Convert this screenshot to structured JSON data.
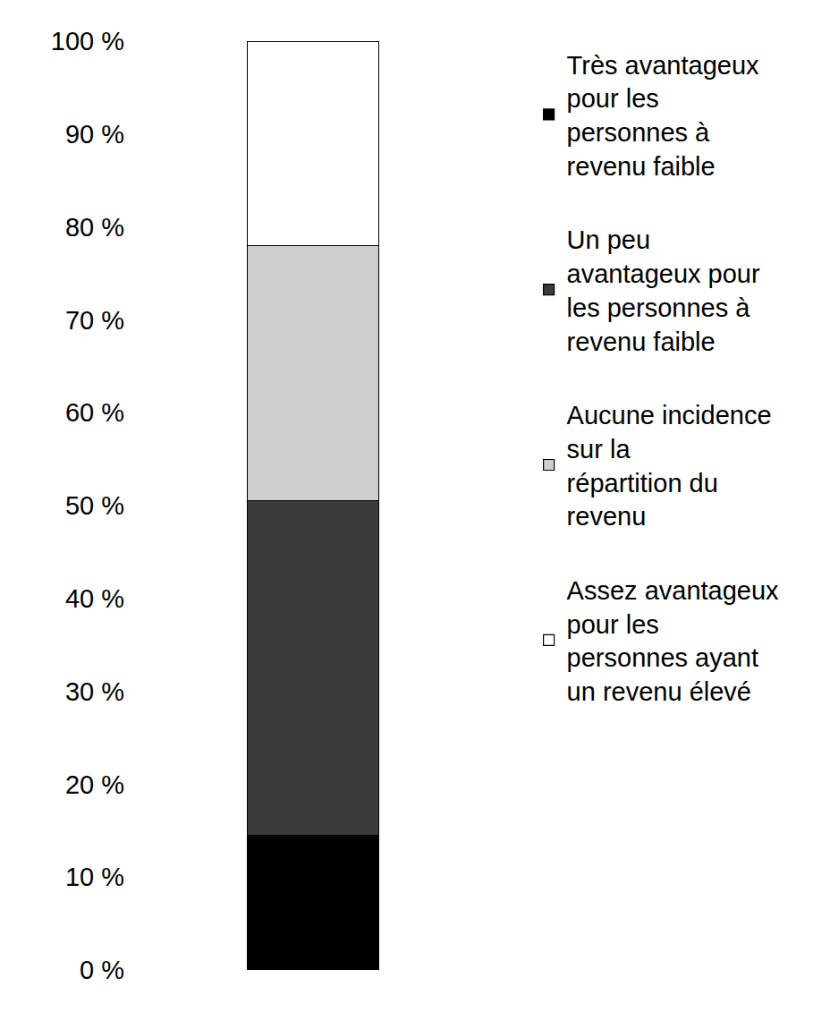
{
  "chart_data": {
    "type": "bar",
    "stacked": true,
    "categories": [
      null
    ],
    "series": [
      {
        "name": "Très avantageux pour les personnes à revenu faible",
        "color": "#000000",
        "values": [
          14.5
        ]
      },
      {
        "name": "Un peu avantageux pour les personnes à revenu faible",
        "color": "#3b3b3b",
        "values": [
          36
        ]
      },
      {
        "name": "Aucune incidence sur la répartition du revenu",
        "color": "#d0cfd0",
        "values": [
          27.5
        ]
      },
      {
        "name": "Assez avantageux pour les personnes ayant un revenu élevé",
        "color": "#ffffff",
        "values": [
          22
        ]
      }
    ],
    "ylim": [
      0,
      100
    ],
    "yticks": [
      {
        "value": 0,
        "label": "0 %"
      },
      {
        "value": 10,
        "label": "10 %"
      },
      {
        "value": 20,
        "label": "20 %"
      },
      {
        "value": 30,
        "label": "30 %"
      },
      {
        "value": 40,
        "label": "40 %"
      },
      {
        "value": 50,
        "label": "50 %"
      },
      {
        "value": 60,
        "label": "60 %"
      },
      {
        "value": 70,
        "label": "70 %"
      },
      {
        "value": 80,
        "label": "80 %"
      },
      {
        "value": 90,
        "label": "90 %"
      },
      {
        "value": 100,
        "label": "100 %"
      }
    ],
    "grid": false,
    "legend": "right",
    "tick_labels": "y"
  }
}
